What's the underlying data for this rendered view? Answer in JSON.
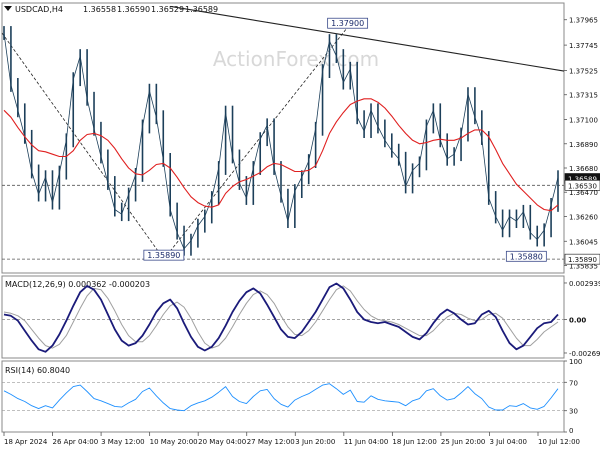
{
  "chart_data": [
    {
      "type": "line",
      "panel": "price",
      "title": "USDCAD,H4",
      "ohlc": [
        1.36558,
        1.3659,
        1.36529,
        1.36589
      ],
      "watermark": "ActionForex.com",
      "ylim": [
        1.3577,
        1.3811
      ],
      "y_ticks": [
        "1.37965",
        "1.37745",
        "1.37525",
        "1.37315",
        "1.37100",
        "1.36890",
        "1.36680",
        "1.36470",
        "1.36260",
        "1.36045",
        "1.35835"
      ],
      "price_tags": [
        {
          "label": "1.36589",
          "value": 1.36589,
          "style": "dark"
        },
        {
          "label": "1.36530",
          "value": 1.3653,
          "style": "light"
        },
        {
          "label": "1.35890",
          "value": 1.3589,
          "style": "light"
        }
      ],
      "annotations": [
        {
          "label": "1.35890",
          "x": 0.288,
          "value": 1.3589
        },
        {
          "label": "1.37900",
          "x": 0.615,
          "value": 1.379
        },
        {
          "label": "1.35880",
          "x": 0.933,
          "value": 1.3588
        }
      ],
      "x_ticks": [
        "18 Apr 2024",
        "26 Apr 04:00",
        "3 May 12:00",
        "10 May 20:00",
        "20 May 04:00",
        "27 May 12:00",
        "3 Jun 20:00",
        "11 Jun 04:00",
        "18 Jun 12:00",
        "25 Jun 20:00",
        "3 Jul 04:00",
        "10 Jul 12:00"
      ],
      "series": [
        {
          "kind": "price",
          "color": "#1c3f5a",
          "values": [
            1.3785,
            1.374,
            1.3718,
            1.3695,
            1.3665,
            1.3645,
            1.366,
            1.3638,
            1.3664,
            1.3692,
            1.3745,
            1.3765,
            1.3728,
            1.3702,
            1.3678,
            1.3655,
            1.3632,
            1.3628,
            1.3645,
            1.3662,
            1.3704,
            1.3735,
            1.3712,
            1.3675,
            1.3632,
            1.3612,
            1.3598,
            1.3605,
            1.3618,
            1.3626,
            1.3642,
            1.3668,
            1.3716,
            1.3678,
            1.3655,
            1.3642,
            1.3668,
            1.3693,
            1.3705,
            1.3668,
            1.3644,
            1.3622,
            1.3648,
            1.366,
            1.3674,
            1.3702,
            1.3752,
            1.3778,
            1.3765,
            1.3742,
            1.3754,
            1.3712,
            1.37,
            1.3718,
            1.3704,
            1.3692,
            1.3683,
            1.3676,
            1.3652,
            1.3666,
            1.3672,
            1.3704,
            1.3718,
            1.3692,
            1.3676,
            1.368,
            1.3697,
            1.3732,
            1.3712,
            1.3694,
            1.3642,
            1.3626,
            1.3614,
            1.3626,
            1.3622,
            1.363,
            1.3612,
            1.3606,
            1.3614,
            1.3636,
            1.366
          ]
        },
        {
          "kind": "moving-average",
          "color": "#e02020",
          "values": [
            1.3718,
            1.3712,
            1.3703,
            1.3695,
            1.3688,
            1.3683,
            1.3682,
            1.368,
            1.3678,
            1.3678,
            1.3683,
            1.3692,
            1.3697,
            1.3698,
            1.3696,
            1.3692,
            1.3685,
            1.3676,
            1.3668,
            1.3663,
            1.3662,
            1.3666,
            1.3671,
            1.3672,
            1.3668,
            1.366,
            1.3651,
            1.3643,
            1.3638,
            1.3635,
            1.3634,
            1.3636,
            1.3646,
            1.3652,
            1.3656,
            1.3658,
            1.3661,
            1.3664,
            1.3669,
            1.3672,
            1.3671,
            1.3668,
            1.3665,
            1.3665,
            1.3666,
            1.367,
            1.3683,
            1.3698,
            1.3708,
            1.3716,
            1.3723,
            1.3726,
            1.3728,
            1.3728,
            1.3725,
            1.372,
            1.3713,
            1.3705,
            1.3698,
            1.3692,
            1.3689,
            1.369,
            1.3692,
            1.3693,
            1.3692,
            1.3692,
            1.3694,
            1.3698,
            1.3701,
            1.3701,
            1.3695,
            1.3684,
            1.3672,
            1.3663,
            1.3654,
            1.3648,
            1.3642,
            1.3636,
            1.3632,
            1.3631,
            1.3636
          ]
        }
      ],
      "trendlines": [
        {
          "from": [
            0.0,
            1.3785
          ],
          "to": [
            0.288,
            1.3589
          ],
          "style": "dashed"
        },
        {
          "from": [
            0.288,
            1.3589
          ],
          "to": [
            0.615,
            1.379
          ],
          "style": "dashed"
        },
        {
          "from": [
            0.3,
            1.3808
          ],
          "to": [
            1.0,
            1.3752
          ],
          "style": "solid"
        }
      ],
      "ref_lines": [
        {
          "value": 1.3653,
          "style": "dashed"
        },
        {
          "value": 1.3589,
          "style": "dashed"
        }
      ]
    },
    {
      "type": "line",
      "panel": "macd",
      "label": "MACD(12,26,9) 0.000362 -0.000203",
      "ylim": [
        -0.0031,
        0.0035
      ],
      "y_ticks": [
        "0.002939",
        "0.00",
        "-0.002696"
      ],
      "series": [
        {
          "kind": "macd",
          "color": "#1b1b7a",
          "values": [
            0.0004,
            0.0003,
            -0.0001,
            -0.0009,
            -0.0017,
            -0.0024,
            -0.0026,
            -0.0021,
            -0.0012,
            -0.0001,
            0.0011,
            0.0022,
            0.0027,
            0.0024,
            0.0016,
            0.0004,
            -0.0008,
            -0.0017,
            -0.0021,
            -0.0019,
            -0.0013,
            -0.0004,
            0.0006,
            0.0013,
            0.0016,
            0.0009,
            -0.0003,
            -0.0014,
            -0.0022,
            -0.0025,
            -0.0022,
            -0.0015,
            -0.0005,
            0.0006,
            0.0015,
            0.0022,
            0.0025,
            0.0021,
            0.0012,
            0.0002,
            -0.0008,
            -0.0014,
            -0.0015,
            -0.001,
            -0.0002,
            0.0006,
            0.0016,
            0.0026,
            0.0029,
            0.0025,
            0.0016,
            0.0006,
            0.0,
            -0.0002,
            -0.0003,
            -0.0002,
            -0.0004,
            -0.0006,
            -0.001,
            -0.0014,
            -0.0016,
            -0.0011,
            -0.0003,
            0.0004,
            0.0008,
            0.0005,
            0.0,
            -0.0004,
            -0.0003,
            0.0004,
            0.0007,
            0.0002,
            -0.0009,
            -0.0019,
            -0.0024,
            -0.0021,
            -0.0014,
            -0.0007,
            -0.0003,
            -0.0002,
            0.0004
          ]
        },
        {
          "kind": "signal",
          "color": "#a0a0a0",
          "values": [
            0.0006,
            0.0005,
            0.0003,
            -0.0001,
            -0.0008,
            -0.0015,
            -0.0021,
            -0.0023,
            -0.002,
            -0.0013,
            -0.0002,
            0.0009,
            0.0019,
            0.0025,
            0.0024,
            0.0017,
            0.0007,
            -0.0004,
            -0.0013,
            -0.0018,
            -0.0018,
            -0.0013,
            -0.0005,
            0.0004,
            0.0011,
            0.0014,
            0.001,
            0.0001,
            -0.001,
            -0.0019,
            -0.0023,
            -0.0021,
            -0.0015,
            -0.0006,
            0.0004,
            0.0013,
            0.002,
            0.0023,
            0.002,
            0.0013,
            0.0003,
            -0.0006,
            -0.0012,
            -0.0013,
            -0.0009,
            -0.0002,
            0.0007,
            0.0016,
            0.0024,
            0.0027,
            0.0023,
            0.0015,
            0.0008,
            0.0003,
            0.0,
            -0.0001,
            -0.0002,
            -0.0004,
            -0.0007,
            -0.001,
            -0.0013,
            -0.0013,
            -0.0009,
            -0.0003,
            0.0002,
            0.0005,
            0.0004,
            0.0001,
            -0.0001,
            0.0,
            0.0004,
            0.0005,
            0.0001,
            -0.0007,
            -0.0015,
            -0.0021,
            -0.0021,
            -0.0016,
            -0.001,
            -0.0006,
            -0.0002
          ]
        }
      ]
    },
    {
      "type": "line",
      "panel": "rsi",
      "label": "RSI(14) 60.8040",
      "ylim": [
        0,
        100
      ],
      "y_ticks": [
        "100",
        "70",
        "30",
        "0"
      ],
      "ref_lines": [
        70,
        30
      ],
      "series": [
        {
          "kind": "rsi",
          "color": "#1e90ff",
          "values": [
            58,
            53,
            47,
            43,
            37,
            33,
            37,
            34,
            45,
            55,
            64,
            66,
            57,
            47,
            44,
            40,
            36,
            35,
            41,
            46,
            57,
            62,
            51,
            41,
            33,
            31,
            30,
            37,
            41,
            44,
            49,
            56,
            64,
            50,
            43,
            40,
            50,
            58,
            60,
            47,
            39,
            35,
            45,
            50,
            54,
            60,
            66,
            68,
            61,
            53,
            59,
            43,
            42,
            51,
            46,
            44,
            43,
            42,
            37,
            44,
            47,
            58,
            61,
            51,
            45,
            47,
            55,
            64,
            54,
            47,
            35,
            31,
            31,
            37,
            36,
            40,
            34,
            32,
            36,
            48,
            61
          ]
        }
      ]
    }
  ]
}
